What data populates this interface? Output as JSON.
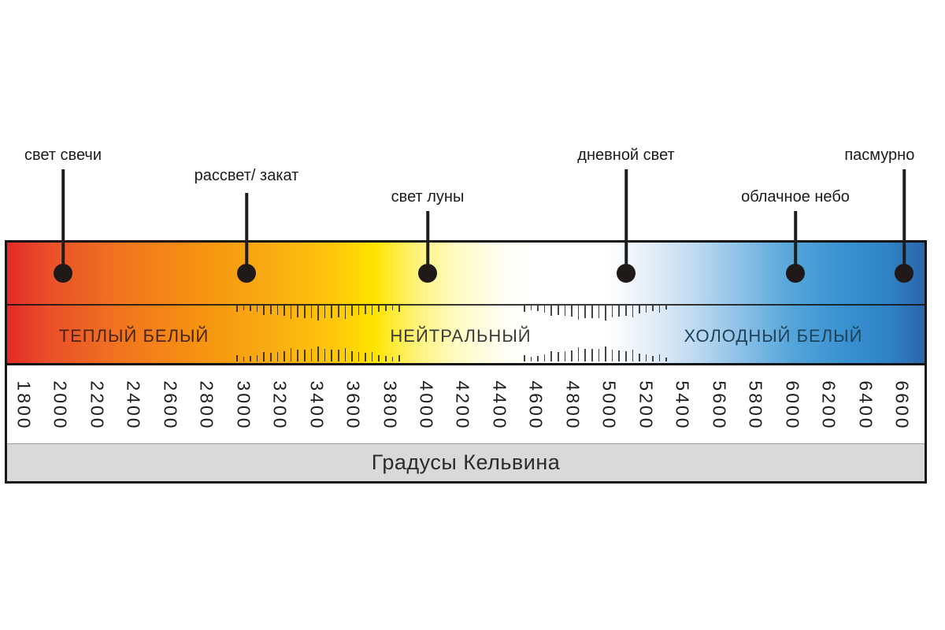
{
  "chart_data": {
    "type": "scale",
    "title": "Градусы Кельвина",
    "axis": {
      "unit": "K",
      "min": 1800,
      "max": 6600,
      "step": 200,
      "tick_labels": [
        "1800",
        "2000",
        "2200",
        "2400",
        "2600",
        "2800",
        "3000",
        "3200",
        "3400",
        "3600",
        "3800",
        "4000",
        "4200",
        "4400",
        "4600",
        "4800",
        "5000",
        "5200",
        "5400",
        "5600",
        "5800",
        "6000",
        "6200",
        "6400",
        "6600"
      ]
    },
    "zones": [
      {
        "label": "ТЕПЛЫЙ БЕЛЫЙ",
        "range_kelvin_approx": [
          1800,
          3200
        ],
        "text_color": "#4a2410"
      },
      {
        "label": "НЕЙТРАЛЬНЫЙ",
        "range_kelvin_approx": [
          3200,
          5400
        ],
        "text_color": "#3a3a38"
      },
      {
        "label": "ХОЛОДНЫЙ БЕЛЫЙ",
        "range_kelvin_approx": [
          5400,
          6600
        ],
        "text_color": "#1f4259"
      }
    ],
    "markers": [
      {
        "label": "свет свечи",
        "kelvin": 2000
      },
      {
        "label": "рассвет/ закат",
        "kelvin": 3000
      },
      {
        "label": "свет луны",
        "kelvin": 4000
      },
      {
        "label": "дневной свет",
        "kelvin": 5000
      },
      {
        "label": "облачное небо",
        "kelvin": 6000
      },
      {
        "label": "пасмурно",
        "kelvin": 6600
      }
    ],
    "gradient_stops": [
      {
        "pos": 0,
        "color": "#e42a28"
      },
      {
        "pos": 4.5,
        "color": "#ea4f2a"
      },
      {
        "pos": 12,
        "color": "#f1731f"
      },
      {
        "pos": 21,
        "color": "#f69311"
      },
      {
        "pos": 29,
        "color": "#f9ad12"
      },
      {
        "pos": 36,
        "color": "#fec90a"
      },
      {
        "pos": 40,
        "color": "#ffe400"
      },
      {
        "pos": 44.5,
        "color": "#fff277"
      },
      {
        "pos": 49,
        "color": "#fffbc4"
      },
      {
        "pos": 54,
        "color": "#fffef2"
      },
      {
        "pos": 58,
        "color": "#ffffff"
      },
      {
        "pos": 65.5,
        "color": "#ffffff"
      },
      {
        "pos": 70,
        "color": "#e4eef8"
      },
      {
        "pos": 74.5,
        "color": "#c3dcf1"
      },
      {
        "pos": 80,
        "color": "#8cc1e7"
      },
      {
        "pos": 85.5,
        "color": "#55a5da"
      },
      {
        "pos": 91,
        "color": "#3a92d0"
      },
      {
        "pos": 96,
        "color": "#2f83c6"
      },
      {
        "pos": 100,
        "color": "#2c66ab"
      }
    ],
    "colors": {
      "background": "#ffffff",
      "border": "#161616",
      "footer_background": "#d9d9d9",
      "marker_dot": "#1f1a17"
    }
  }
}
